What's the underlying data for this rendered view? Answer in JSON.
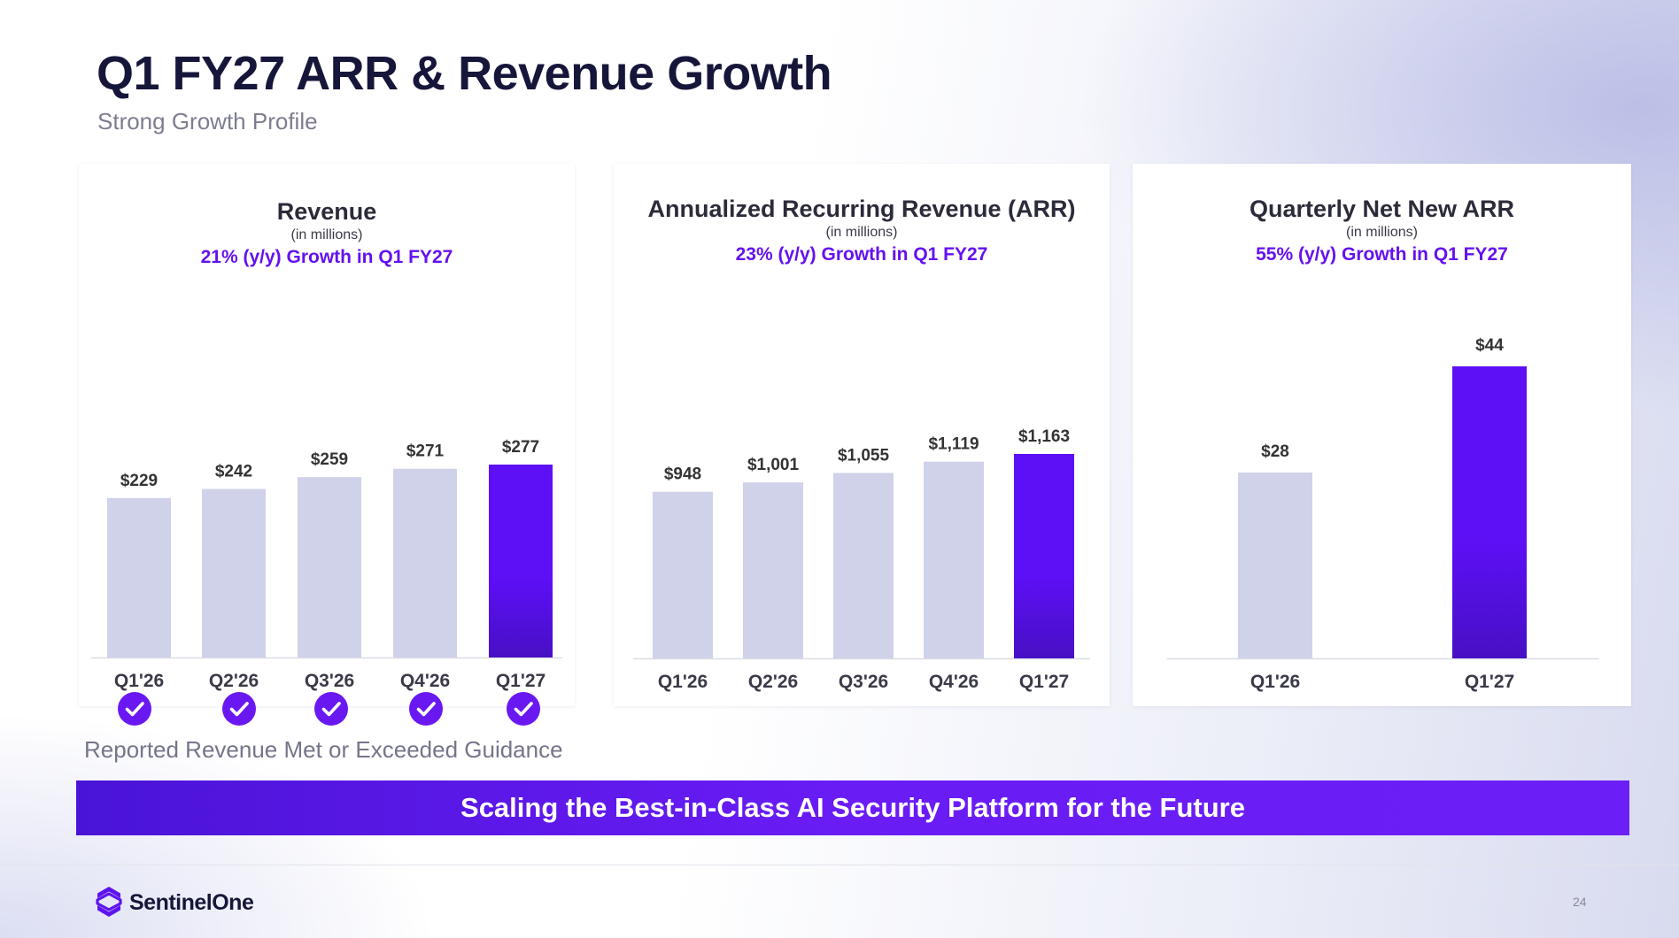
{
  "header": {
    "title": "Q1 FY27 ARR & Revenue Growth",
    "subtitle": "Strong Growth Profile"
  },
  "chart_data": [
    {
      "type": "bar",
      "title": "Revenue",
      "subtitle": "(in millions)",
      "growth_note": "21% (y/y) Growth in Q1 FY27",
      "categories": [
        "Q1'26",
        "Q2'26",
        "Q3'26",
        "Q4'26",
        "Q1'27"
      ],
      "values": [
        229,
        242,
        259,
        271,
        277
      ],
      "value_labels": [
        "$229",
        "$242",
        "$259",
        "$271",
        "$277"
      ],
      "highlight_index": 4,
      "grid": false,
      "legend": "none"
    },
    {
      "type": "bar",
      "title": "Annualized Recurring Revenue (ARR)",
      "subtitle": "(in millions)",
      "growth_note": "23% (y/y) Growth in Q1 FY27",
      "categories": [
        "Q1'26",
        "Q2'26",
        "Q3'26",
        "Q4'26",
        "Q1'27"
      ],
      "values": [
        948,
        1001,
        1055,
        1119,
        1163
      ],
      "value_labels": [
        "$948",
        "$1,001",
        "$1,055",
        "$1,119",
        "$1,163"
      ],
      "highlight_index": 4,
      "grid": false,
      "legend": "none"
    },
    {
      "type": "bar",
      "title": "Quarterly Net New ARR",
      "subtitle": "(in millions)",
      "growth_note": "55% (y/y) Growth in Q1 FY27",
      "categories": [
        "Q1'26",
        "Q1'27"
      ],
      "values": [
        28,
        44
      ],
      "value_labels": [
        "$28",
        "$44"
      ],
      "highlight_index": 1,
      "grid": false,
      "legend": "none"
    }
  ],
  "guidance": {
    "met_count": 5,
    "icon": "check-circle-icon",
    "label": "Reported Revenue Met or Exceeded Guidance"
  },
  "banner": {
    "text": "Scaling the Best-in-Class AI Security Platform for the Future"
  },
  "footer": {
    "brand": "SentinelOne",
    "page_number": "24"
  },
  "colors": {
    "highlight_bar": "#5d0ff5",
    "highlight_bar_dark": "#4710c4",
    "base_bar": "#cfd2e9",
    "accent_text": "#6411f0",
    "banner": "#5f18ee"
  }
}
